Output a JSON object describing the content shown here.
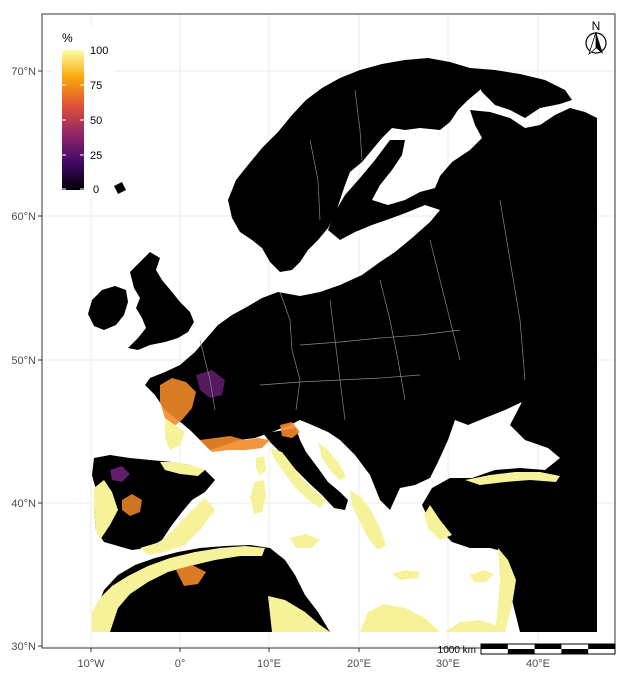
{
  "map": {
    "x_axis": {
      "ticks": [
        "10°W",
        "0°",
        "10°E",
        "20°E",
        "30°E",
        "40°E"
      ]
    },
    "y_axis": {
      "ticks": [
        "30°N",
        "40°N",
        "50°N",
        "60°N",
        "70°N"
      ]
    },
    "legend": {
      "title": "%",
      "labels": [
        "100",
        "75",
        "50",
        "25",
        "0"
      ],
      "range": [
        0,
        100
      ],
      "colors": [
        "#000004",
        "#420a68",
        "#932667",
        "#dd513a",
        "#fca50a",
        "#fcffa4"
      ],
      "position": "top-left"
    },
    "north_arrow": {
      "label": "N"
    },
    "scale_bar": {
      "label": "1000 km"
    },
    "colors": {
      "land_dark": "#000000",
      "land_light": "#f6f29a",
      "hotspot_orange": "#f28a2a",
      "hotspot_purple": "#6b1f78",
      "sea": "#ffffff",
      "panel_border": "#333333",
      "gridline": "#ebebeb",
      "border_lines": "#8a8a8a"
    }
  }
}
